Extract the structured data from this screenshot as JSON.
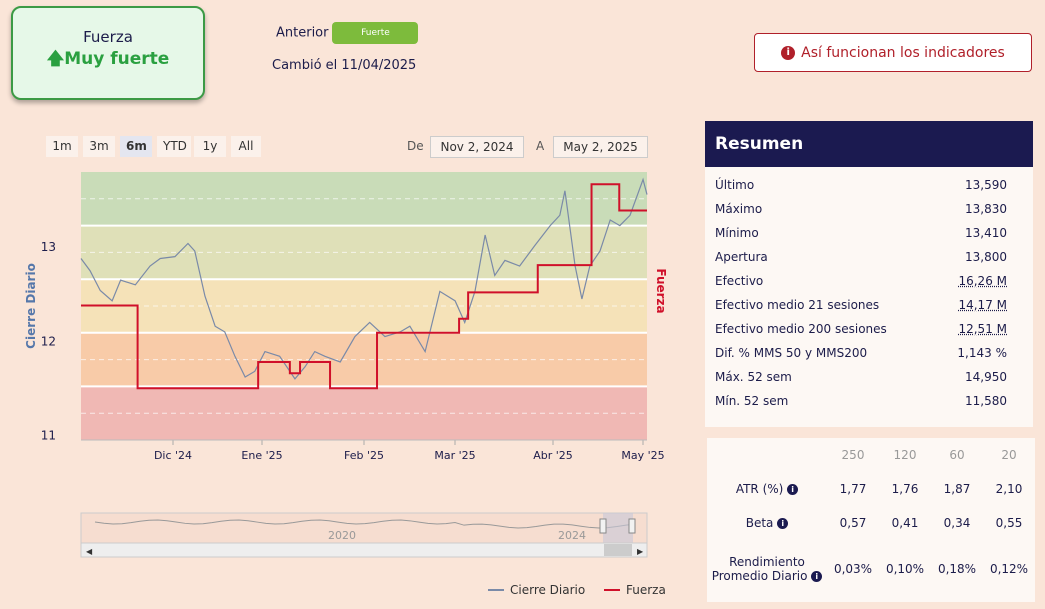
{
  "strength": {
    "label": "Fuerza",
    "value": "Muy fuerte",
    "previous_label": "Anterior",
    "previous_value": "Fuerte",
    "changed": "Cambió el 11/04/2025"
  },
  "help_button": "Así funcionan los indicadores",
  "ranges": [
    "1m",
    "3m",
    "6m",
    "YTD",
    "1y",
    "All"
  ],
  "selected_range": "6m",
  "date_from_label": "De",
  "date_from": "Nov 2, 2024",
  "date_to_label": "A",
  "date_to": "May 2, 2025",
  "summary": {
    "title": "Resumen",
    "rows": [
      {
        "label": "Último",
        "value": "13,590"
      },
      {
        "label": "Máximo",
        "value": "13,830"
      },
      {
        "label": "Mínimo",
        "value": "13,410"
      },
      {
        "label": "Apertura",
        "value": "13,800"
      },
      {
        "label": "Efectivo",
        "value": "16,26 M"
      },
      {
        "label": "Efectivo medio 21 sesiones",
        "value": "14,17 M"
      },
      {
        "label": "Efectivo medio 200 sesiones",
        "value": "12,51 M"
      },
      {
        "label": "Dif. % MMS 50 y MMS200",
        "value": "1,143 %"
      },
      {
        "label": "Máx. 52 sem",
        "value": "14,950"
      },
      {
        "label": "Mín. 52 sem",
        "value": "11,580"
      }
    ]
  },
  "stats": {
    "headers": [
      "250",
      "120",
      "60",
      "20"
    ],
    "rows": [
      {
        "label": "ATR (%)",
        "values": [
          "1,77",
          "1,76",
          "1,87",
          "2,10"
        ]
      },
      {
        "label": "Beta",
        "values": [
          "0,57",
          "0,41",
          "0,34",
          "0,55"
        ]
      },
      {
        "label": "Rendimiento Promedio Diario",
        "values": [
          "0,03%",
          "0,10%",
          "0,18%",
          "0,12%"
        ]
      }
    ]
  },
  "navigator": {
    "labels": [
      "2020",
      "2024"
    ]
  },
  "chart_data": {
    "type": "line",
    "ylabel": "Cierre Diario",
    "y2label": "Fuerza",
    "ylim": [
      10.95,
      13.8
    ],
    "yticks": [
      11,
      12,
      13
    ],
    "xticks": [
      "Dic '24",
      "Ene '25",
      "Feb '25",
      "Mar '25",
      "Abr '25",
      "May '25"
    ],
    "legend": [
      "Cierre Diario",
      "Fuerza"
    ],
    "colors": {
      "price": "#7a8aa8",
      "fuerza": "#d0102a"
    },
    "bands": [
      "#c9dcb8",
      "#dfe0b8",
      "#f5e2b8",
      "#f8cba8",
      "#f0b8b4"
    ],
    "price": [
      [
        0,
        12.88
      ],
      [
        0.016,
        12.75
      ],
      [
        0.034,
        12.54
      ],
      [
        0.055,
        12.43
      ],
      [
        0.07,
        12.65
      ],
      [
        0.096,
        12.6
      ],
      [
        0.122,
        12.8
      ],
      [
        0.14,
        12.88
      ],
      [
        0.166,
        12.9
      ],
      [
        0.189,
        13.04
      ],
      [
        0.201,
        12.96
      ],
      [
        0.219,
        12.48
      ],
      [
        0.237,
        12.16
      ],
      [
        0.254,
        12.1
      ],
      [
        0.272,
        11.84
      ],
      [
        0.29,
        11.62
      ],
      [
        0.307,
        11.68
      ],
      [
        0.325,
        11.89
      ],
      [
        0.351,
        11.84
      ],
      [
        0.378,
        11.6
      ],
      [
        0.396,
        11.73
      ],
      [
        0.413,
        11.89
      ],
      [
        0.431,
        11.84
      ],
      [
        0.458,
        11.78
      ],
      [
        0.484,
        12.05
      ],
      [
        0.51,
        12.2
      ],
      [
        0.537,
        12.05
      ],
      [
        0.564,
        12.1
      ],
      [
        0.581,
        12.16
      ],
      [
        0.608,
        11.89
      ],
      [
        0.634,
        12.53
      ],
      [
        0.661,
        12.43
      ],
      [
        0.678,
        12.2
      ],
      [
        0.696,
        12.53
      ],
      [
        0.714,
        13.13
      ],
      [
        0.731,
        12.7
      ],
      [
        0.749,
        12.86
      ],
      [
        0.775,
        12.8
      ],
      [
        0.802,
        13.02
      ],
      [
        0.829,
        13.23
      ],
      [
        0.846,
        13.34
      ],
      [
        0.855,
        13.6
      ],
      [
        0.873,
        12.8
      ],
      [
        0.885,
        12.45
      ],
      [
        0.899,
        12.8
      ],
      [
        0.917,
        12.96
      ],
      [
        0.935,
        13.29
      ],
      [
        0.952,
        13.23
      ],
      [
        0.97,
        13.34
      ],
      [
        0.993,
        13.72
      ],
      [
        1,
        13.56
      ]
    ],
    "fuerza": [
      [
        0,
        12.38
      ],
      [
        0.1,
        12.38
      ],
      [
        0.1,
        11.5
      ],
      [
        0.313,
        11.5
      ],
      [
        0.313,
        11.78
      ],
      [
        0.369,
        11.78
      ],
      [
        0.369,
        11.66
      ],
      [
        0.387,
        11.66
      ],
      [
        0.387,
        11.78
      ],
      [
        0.44,
        11.78
      ],
      [
        0.44,
        11.5
      ],
      [
        0.523,
        11.5
      ],
      [
        0.523,
        12.09
      ],
      [
        0.668,
        12.09
      ],
      [
        0.668,
        12.24
      ],
      [
        0.684,
        12.24
      ],
      [
        0.684,
        12.52
      ],
      [
        0.807,
        12.52
      ],
      [
        0.807,
        12.81
      ],
      [
        0.902,
        12.81
      ],
      [
        0.902,
        13.67
      ],
      [
        0.951,
        13.67
      ],
      [
        0.951,
        13.39
      ],
      [
        1,
        13.39
      ]
    ]
  }
}
